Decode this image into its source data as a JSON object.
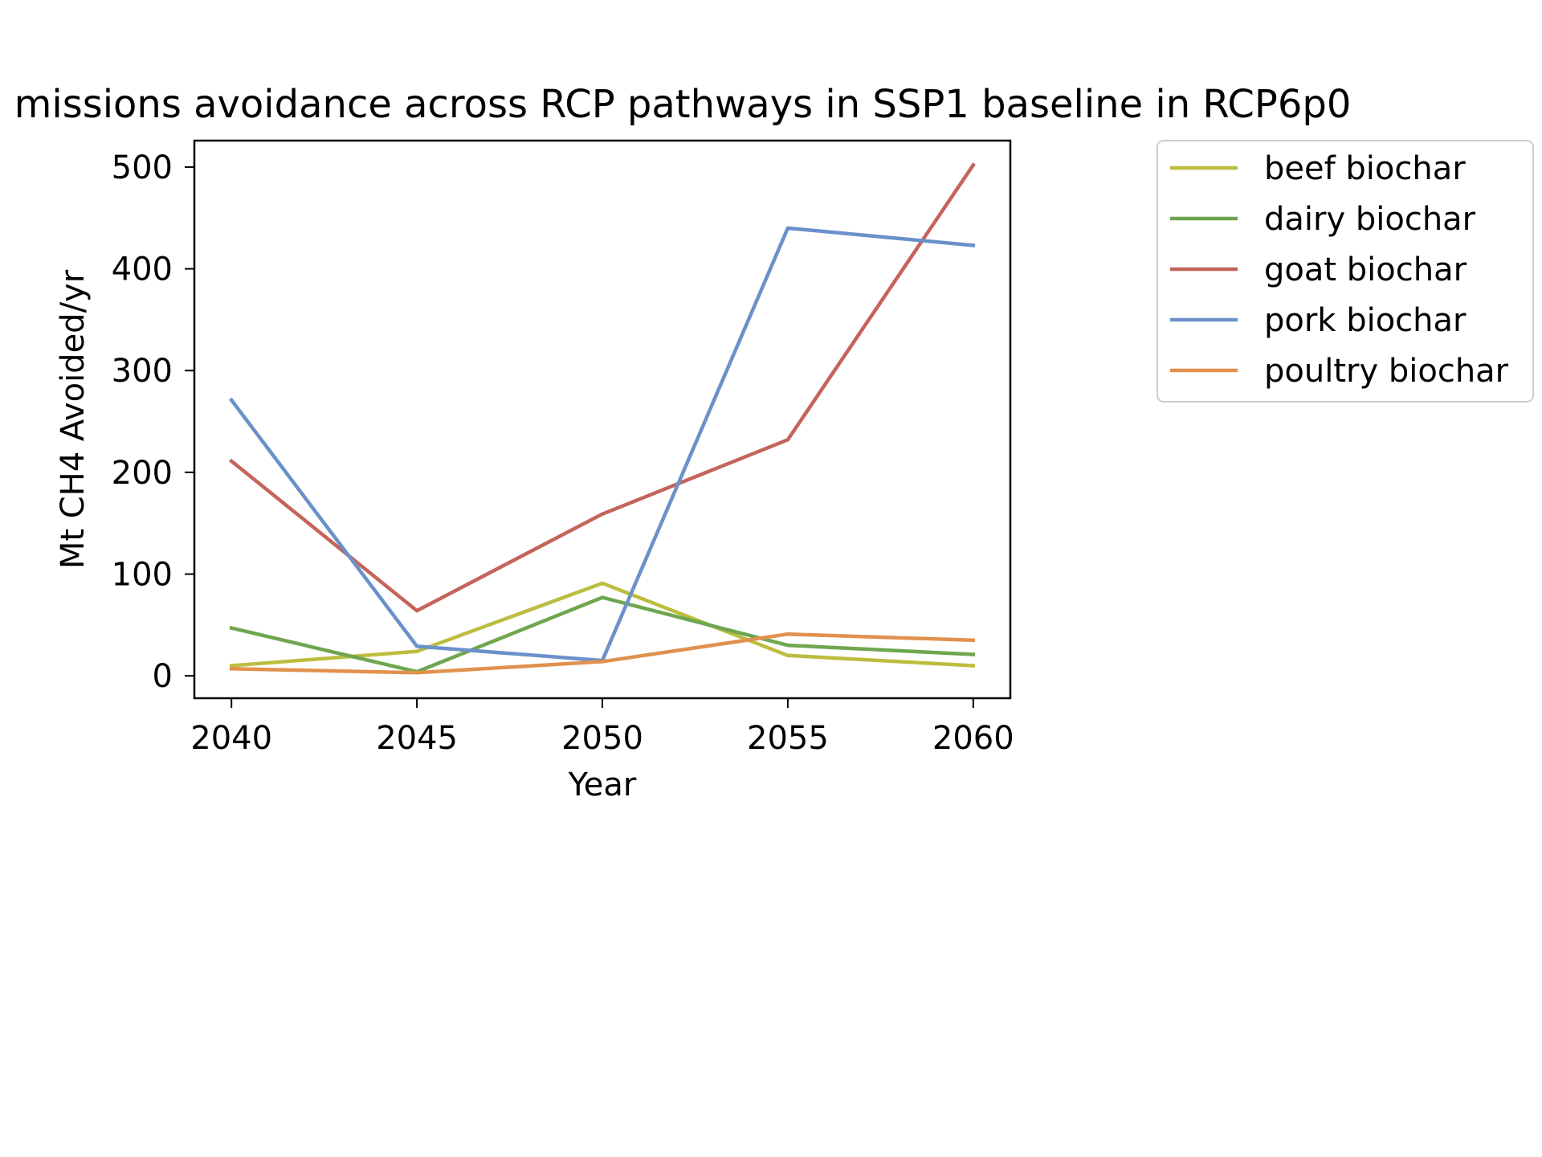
{
  "chart_data": {
    "type": "line",
    "title": "missions avoidance across RCP pathways in SSP1 baseline in RCP6p0",
    "xlabel": "Year",
    "ylabel": "Mt CH4 Avoided/yr",
    "x": [
      2040,
      2045,
      2050,
      2055,
      2060
    ],
    "xticks": [
      "2040",
      "2045",
      "2050",
      "2055",
      "2060"
    ],
    "yticks": [
      "0",
      "100",
      "200",
      "300",
      "400",
      "500"
    ],
    "xlim": [
      2039,
      2061
    ],
    "ylim": [
      -22,
      526
    ],
    "grid": false,
    "legend_position": "outside-right-top",
    "series": [
      {
        "name": "beef biochar",
        "color": "#bcbd3f",
        "values": [
          10,
          24,
          91,
          20,
          10
        ]
      },
      {
        "name": "dairy biochar",
        "color": "#6fa64f",
        "values": [
          47,
          4,
          77,
          30,
          21
        ]
      },
      {
        "name": "goat biochar",
        "color": "#c5645a",
        "values": [
          211,
          64,
          159,
          232,
          502
        ]
      },
      {
        "name": "pork biochar",
        "color": "#6a91c9",
        "values": [
          271,
          29,
          15,
          440,
          423
        ]
      },
      {
        "name": "poultry biochar",
        "color": "#e1914d",
        "values": [
          7,
          3,
          14,
          41,
          35
        ]
      }
    ]
  }
}
